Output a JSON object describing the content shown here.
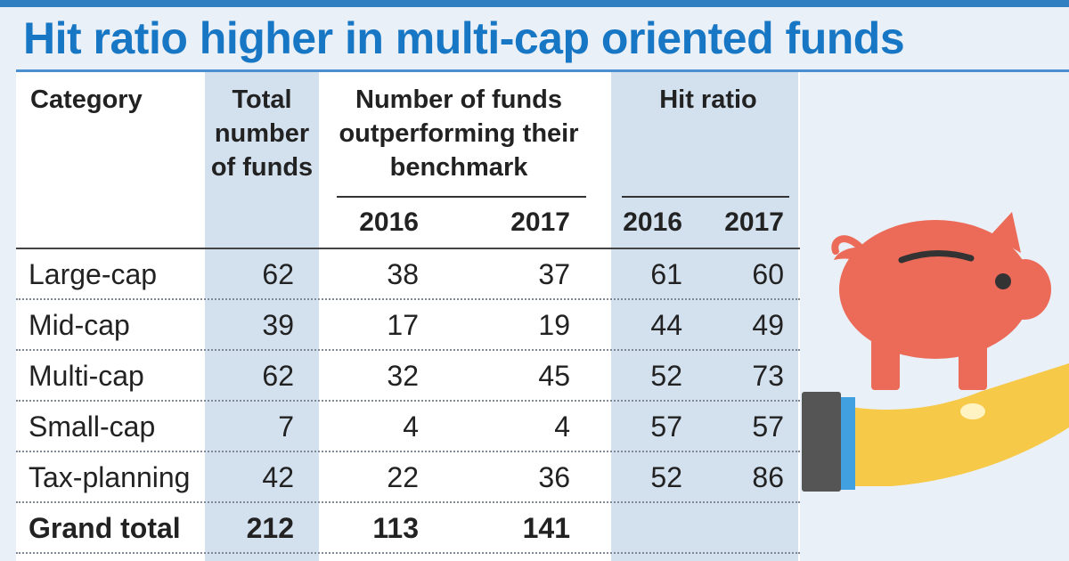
{
  "title": "Hit ratio higher in multi-cap oriented funds",
  "table": {
    "headers": {
      "category": "Category",
      "total_funds": "Total number of funds",
      "outperforming": "Number of funds outperforming their benchmark",
      "hit_ratio": "Hit ratio",
      "years": [
        "2016",
        "2017",
        "2016",
        "2017"
      ]
    },
    "rows": [
      {
        "category": "Large-cap",
        "total": "62",
        "out_2016": "38",
        "out_2017": "37",
        "hit_2016": "61",
        "hit_2017": "60"
      },
      {
        "category": "Mid-cap",
        "total": "39",
        "out_2016": "17",
        "out_2017": "19",
        "hit_2016": "44",
        "hit_2017": "49"
      },
      {
        "category": "Multi-cap",
        "total": "62",
        "out_2016": "32",
        "out_2017": "45",
        "hit_2016": "52",
        "hit_2017": "73"
      },
      {
        "category": "Small-cap",
        "total": "7",
        "out_2016": "4",
        "out_2017": "4",
        "hit_2016": "57",
        "hit_2017": "57"
      },
      {
        "category": "Tax-planning",
        "total": "42",
        "out_2016": "22",
        "out_2017": "36",
        "hit_2016": "52",
        "hit_2017": "86"
      }
    ],
    "grand_total": {
      "category": "Grand total",
      "total": "212",
      "out_2016": "113",
      "out_2017": "141",
      "hit_2016": "",
      "hit_2017": ""
    }
  },
  "chart_data": {
    "type": "table",
    "title": "Hit ratio higher in multi-cap oriented funds",
    "columns": [
      "Category",
      "Total number of funds",
      "Number of funds outperforming their benchmark 2016",
      "Number of funds outperforming their benchmark 2017",
      "Hit ratio 2016",
      "Hit ratio 2017"
    ],
    "rows": [
      [
        "Large-cap",
        62,
        38,
        37,
        61,
        60
      ],
      [
        "Mid-cap",
        39,
        17,
        19,
        44,
        49
      ],
      [
        "Multi-cap",
        62,
        32,
        45,
        52,
        73
      ],
      [
        "Small-cap",
        7,
        4,
        4,
        57,
        57
      ],
      [
        "Tax-planning",
        42,
        22,
        36,
        52,
        86
      ],
      [
        "Grand total",
        212,
        113,
        141,
        null,
        null
      ]
    ]
  },
  "colors": {
    "title": "#1877c4",
    "shaded_column": "#d3e1ef",
    "background": "#e9f0f8",
    "piggy_bank": "#ec6b58",
    "hand": "#f7c948",
    "cuff": "#41a0e0",
    "sleeve": "#555555"
  },
  "icons": {
    "piggy_bank": "piggy-bank-icon",
    "hand": "open-hand-icon"
  }
}
